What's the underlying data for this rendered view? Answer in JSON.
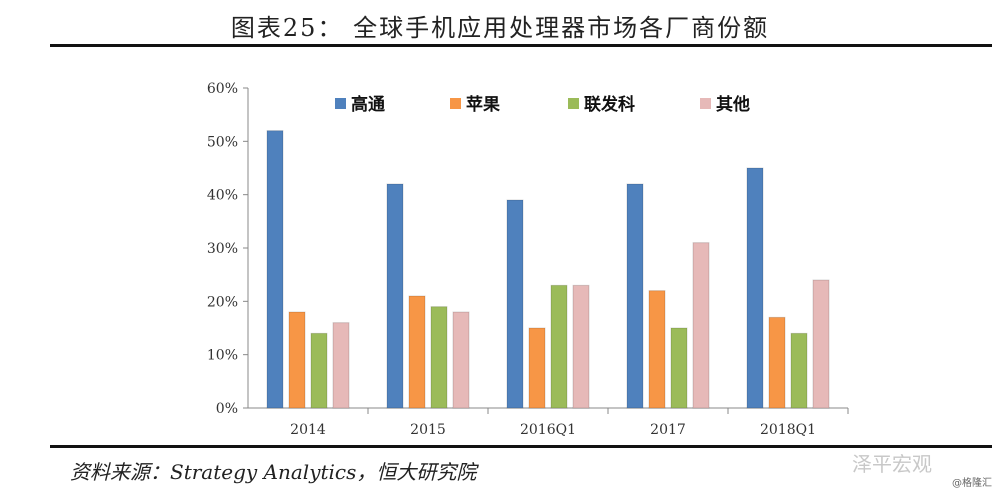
{
  "header": {
    "title": "图表25： 全球手机应用处理器市场各厂商份额"
  },
  "footer": {
    "source": "资料来源：Strategy Analytics，恒大研究院"
  },
  "watermark": {
    "text": "泽平宏观",
    "corner": "@格隆汇"
  },
  "chart_data": {
    "type": "bar",
    "title": "",
    "xlabel": "",
    "ylabel": "",
    "categories": [
      "2014",
      "2015",
      "2016Q1",
      "2017",
      "2018Q1"
    ],
    "ylim": [
      0,
      60
    ],
    "yticks": [
      "0%",
      "10%",
      "20%",
      "30%",
      "40%",
      "50%",
      "60%"
    ],
    "legend_position": "top",
    "grid": false,
    "series": [
      {
        "name": "高通",
        "color": "#4f81bd",
        "values": [
          52,
          42,
          39,
          42,
          45
        ]
      },
      {
        "name": "苹果",
        "color": "#f79646",
        "values": [
          18,
          21,
          15,
          22,
          17
        ]
      },
      {
        "name": "联发科",
        "color": "#9bbb59",
        "values": [
          14,
          19,
          23,
          15,
          14
        ]
      },
      {
        "name": "其他",
        "color": "#e6b9b8",
        "values": [
          16,
          18,
          23,
          31,
          24
        ]
      }
    ]
  }
}
